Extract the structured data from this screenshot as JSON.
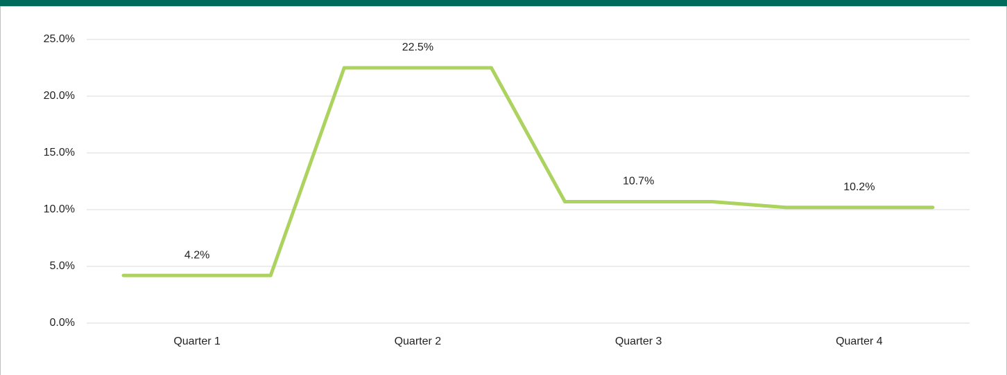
{
  "chart_data": {
    "type": "line",
    "categories": [
      "Quarter 1",
      "Quarter 2",
      "Quarter 3",
      "Quarter 4"
    ],
    "series": [
      {
        "color": "#acd260",
        "values": [
          4.2,
          22.5,
          10.7,
          10.2
        ],
        "value_labels": [
          "4.2%",
          "22.5%",
          "10.7%",
          "10.2%"
        ]
      }
    ],
    "ylim": [
      0,
      25
    ],
    "yticks": [
      {
        "value": 0,
        "label": "0.0%"
      },
      {
        "value": 5,
        "label": "5.0%"
      },
      {
        "value": 10,
        "label": "10.0%"
      },
      {
        "value": 15,
        "label": "15.0%"
      },
      {
        "value": 20,
        "label": "20.0%"
      },
      {
        "value": 25,
        "label": "25.0%"
      }
    ],
    "grid": true
  }
}
